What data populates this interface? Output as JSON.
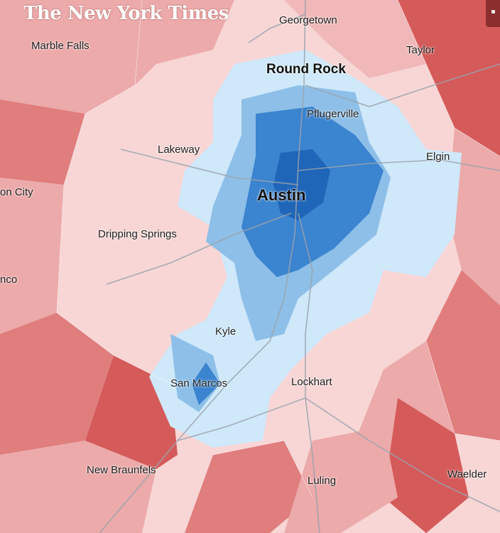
{
  "brand": {
    "name": "The New York Times"
  },
  "colors": {
    "dem_dark": "#1f66b8",
    "dem_mid": "#3b84cf",
    "dem_light": "#8ebfe8",
    "dem_pale": "#cfe8fa",
    "rep_pale": "#f8d6d6",
    "rep_light": "#ecaaaa",
    "rep_mid": "#e07d7d",
    "rep_dark": "#d55a5a",
    "roads": "#9aa3ad"
  },
  "places": [
    {
      "id": "georgetown",
      "name": "Georgetown",
      "weight": "normal"
    },
    {
      "id": "marble-falls",
      "name": "Marble Falls",
      "weight": "normal"
    },
    {
      "id": "taylor",
      "name": "Taylor",
      "weight": "normal"
    },
    {
      "id": "round-rock",
      "name": "Round Rock",
      "weight": "big"
    },
    {
      "id": "pflugerville",
      "name": "Pflugerville",
      "weight": "normal"
    },
    {
      "id": "lakeway",
      "name": "Lakeway",
      "weight": "normal"
    },
    {
      "id": "elgin",
      "name": "Elgin",
      "weight": "normal"
    },
    {
      "id": "austin",
      "name": "Austin",
      "weight": "huge"
    },
    {
      "id": "marble-city",
      "name": "on City",
      "weight": "normal"
    },
    {
      "id": "dripping-springs",
      "name": "Dripping Springs",
      "weight": "normal"
    },
    {
      "id": "blanco",
      "name": "nco",
      "weight": "normal"
    },
    {
      "id": "kyle",
      "name": "Kyle",
      "weight": "normal"
    },
    {
      "id": "san-marcos",
      "name": "San Marcos",
      "weight": "normal"
    },
    {
      "id": "lockhart",
      "name": "Lockhart",
      "weight": "normal"
    },
    {
      "id": "new-braunfels",
      "name": "New Braunfels",
      "weight": "normal"
    },
    {
      "id": "waelder",
      "name": "Waelder",
      "weight": "normal"
    },
    {
      "id": "luling",
      "name": "Luling",
      "weight": "normal"
    }
  ]
}
